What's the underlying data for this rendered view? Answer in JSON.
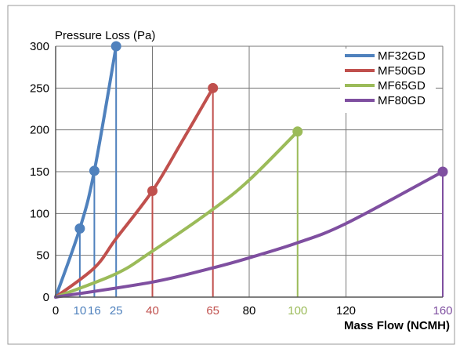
{
  "chart_data": {
    "type": "line",
    "ylabel": "Pressure Loss (Pa)",
    "xlabel": "Mass Flow (NCMH)",
    "xlim": [
      0,
      160
    ],
    "ylim": [
      0,
      300
    ],
    "x_ticks": [
      0,
      40,
      80,
      120,
      160
    ],
    "y_ticks": [
      0,
      50,
      100,
      150,
      200,
      250,
      300
    ],
    "grid": true,
    "legend_position": "top-right",
    "colors": {
      "axis": "#555555",
      "grid": "#777777",
      "text": "#000000"
    },
    "series": [
      {
        "name": "MF32GD",
        "color": "#4f81bd",
        "x": [
          0,
          10,
          16,
          25
        ],
        "y": [
          0,
          82,
          151,
          300
        ],
        "marker_x": [
          10,
          16,
          25
        ],
        "marker_labels": [
          "10",
          "16",
          "25"
        ]
      },
      {
        "name": "MF50GD",
        "color": "#c0504d",
        "x": [
          0,
          16,
          25,
          40,
          52,
          65
        ],
        "y": [
          0,
          35,
          70,
          127,
          185,
          250
        ],
        "marker_x": [
          40,
          65
        ],
        "marker_labels": [
          "40",
          "65"
        ]
      },
      {
        "name": "MF65GD",
        "color": "#9bbb59",
        "x": [
          0,
          25,
          40,
          65,
          80,
          100
        ],
        "y": [
          0,
          28,
          55,
          105,
          140,
          198
        ],
        "marker_x": [
          100
        ],
        "marker_labels": [
          "100"
        ]
      },
      {
        "name": "MF80GD",
        "color": "#7f4fa0",
        "x": [
          0,
          40,
          65,
          80,
          100,
          120,
          160
        ],
        "y": [
          0,
          18,
          35,
          47,
          65,
          88,
          150
        ],
        "marker_x": [
          160
        ],
        "marker_labels": [
          "160"
        ]
      }
    ]
  }
}
